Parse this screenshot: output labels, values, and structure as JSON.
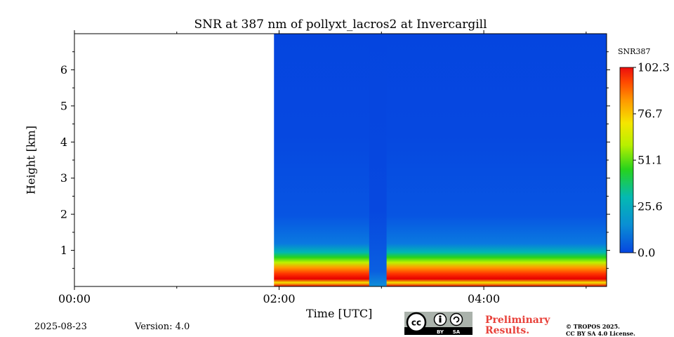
{
  "chart_data": {
    "type": "heatmap",
    "title": "SNR at 387 nm of pollyxt_lacros2 at Invercargill",
    "xlabel": "Time [UTC]",
    "ylabel": "Height [km]",
    "x_ticks": [
      "00:00",
      "02:00",
      "04:00"
    ],
    "y_ticks": [
      "1",
      "2",
      "3",
      "4",
      "5",
      "6"
    ],
    "x_range_hours": [
      0,
      5.2
    ],
    "y_range_km": [
      0,
      7
    ],
    "data_start_hours": 1.95,
    "gap_hours": [
      2.88,
      3.05
    ],
    "colorbar": {
      "label": "SNR387",
      "ticks": [
        "102.3",
        "76.7",
        "51.1",
        "25.6",
        "0.0"
      ],
      "range": [
        0.0,
        102.3
      ]
    },
    "profile_summary": [
      {
        "height_km": 0.1,
        "snr": 100
      },
      {
        "height_km": 0.3,
        "snr": 95
      },
      {
        "height_km": 0.5,
        "snr": 75
      },
      {
        "height_km": 0.7,
        "snr": 50
      },
      {
        "height_km": 0.9,
        "snr": 30
      },
      {
        "height_km": 1.2,
        "snr": 15
      },
      {
        "height_km": 2.0,
        "snr": 8
      },
      {
        "height_km": 4.0,
        "snr": 3
      },
      {
        "height_km": 7.0,
        "snr": 1
      }
    ]
  },
  "footer": {
    "date": "2025-08-23",
    "version": "Version: 4.0",
    "preliminary": "Preliminary Results.",
    "copyright_line1": "© TROPOS 2025.",
    "copyright_line2": "CC BY SA 4.0 License.",
    "cc_badge": {
      "cc": "cc",
      "by": "BY",
      "sa": "SA"
    }
  }
}
